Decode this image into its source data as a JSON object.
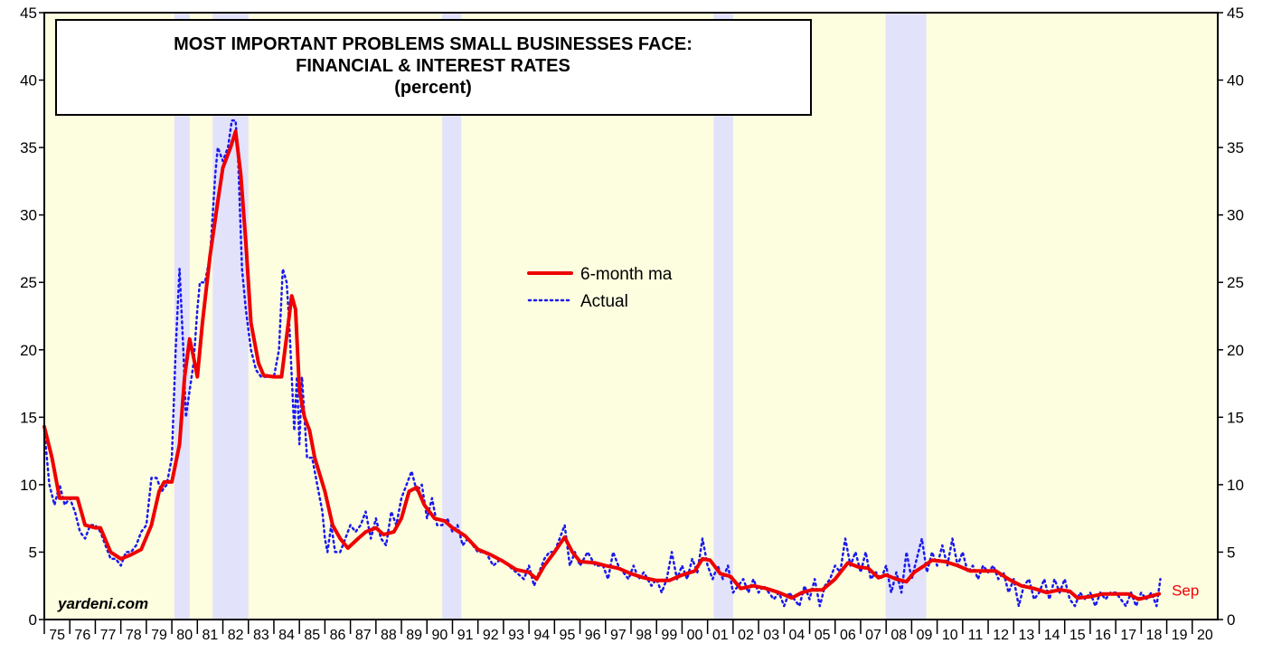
{
  "chart_data": {
    "type": "line",
    "title_lines": [
      "MOST IMPORTANT PROBLEMS SMALL BUSINESSES FACE:",
      "FINANCIAL & INTEREST RATES",
      "(percent)"
    ],
    "source": "yardeni.com",
    "annotation": "Sep",
    "xlim": [
      1975,
      2021
    ],
    "ylim": [
      0,
      45
    ],
    "y2lim": [
      0,
      45
    ],
    "yticks": [
      0,
      5,
      10,
      15,
      20,
      25,
      30,
      35,
      40,
      45
    ],
    "y2ticks": [
      0,
      5,
      10,
      15,
      20,
      25,
      30,
      35,
      40,
      45
    ],
    "xticks": [
      {
        "value": 1975,
        "label": "75"
      },
      {
        "value": 1976,
        "label": "76"
      },
      {
        "value": 1977,
        "label": "77"
      },
      {
        "value": 1978,
        "label": "78"
      },
      {
        "value": 1979,
        "label": "79"
      },
      {
        "value": 1980,
        "label": "80"
      },
      {
        "value": 1981,
        "label": "81"
      },
      {
        "value": 1982,
        "label": "82"
      },
      {
        "value": 1983,
        "label": "83"
      },
      {
        "value": 1984,
        "label": "84"
      },
      {
        "value": 1985,
        "label": "85"
      },
      {
        "value": 1986,
        "label": "86"
      },
      {
        "value": 1987,
        "label": "87"
      },
      {
        "value": 1988,
        "label": "88"
      },
      {
        "value": 1989,
        "label": "89"
      },
      {
        "value": 1990,
        "label": "90"
      },
      {
        "value": 1991,
        "label": "91"
      },
      {
        "value": 1992,
        "label": "92"
      },
      {
        "value": 1993,
        "label": "93"
      },
      {
        "value": 1994,
        "label": "94"
      },
      {
        "value": 1995,
        "label": "95"
      },
      {
        "value": 1996,
        "label": "96"
      },
      {
        "value": 1997,
        "label": "97"
      },
      {
        "value": 1998,
        "label": "98"
      },
      {
        "value": 1999,
        "label": "99"
      },
      {
        "value": 2000,
        "label": "00"
      },
      {
        "value": 2001,
        "label": "01"
      },
      {
        "value": 2002,
        "label": "02"
      },
      {
        "value": 2003,
        "label": "03"
      },
      {
        "value": 2004,
        "label": "04"
      },
      {
        "value": 2005,
        "label": "05"
      },
      {
        "value": 2006,
        "label": "06"
      },
      {
        "value": 2007,
        "label": "07"
      },
      {
        "value": 2008,
        "label": "08"
      },
      {
        "value": 2009,
        "label": "09"
      },
      {
        "value": 2010,
        "label": "10"
      },
      {
        "value": 2011,
        "label": "11"
      },
      {
        "value": 2012,
        "label": "12"
      },
      {
        "value": 2013,
        "label": "13"
      },
      {
        "value": 2014,
        "label": "14"
      },
      {
        "value": 2015,
        "label": "15"
      },
      {
        "value": 2016,
        "label": "16"
      },
      {
        "value": 2017,
        "label": "17"
      },
      {
        "value": 2018,
        "label": "18"
      },
      {
        "value": 2019,
        "label": "19"
      },
      {
        "value": 2020,
        "label": "20"
      }
    ],
    "shaded_periods": [
      [
        1980.1,
        1980.7
      ],
      [
        1981.6,
        1983.0
      ],
      [
        1990.6,
        1991.35
      ],
      [
        2001.24,
        2002.0
      ],
      [
        2007.98,
        2009.57
      ]
    ],
    "background_color": "#fdfde0",
    "shade_color": "#e2e2fa",
    "series": [
      {
        "name": "6-month ma",
        "color": "#ee0000",
        "style": "solid",
        "x": [
          1975.0,
          1975.3,
          1975.6,
          1976.0,
          1976.3,
          1976.6,
          1977.0,
          1977.2,
          1977.6,
          1978.0,
          1978.4,
          1978.8,
          1979.2,
          1979.5,
          1979.7,
          1980.0,
          1980.3,
          1980.5,
          1980.7,
          1980.9,
          1981.0,
          1981.2,
          1981.5,
          1981.8,
          1982.0,
          1982.3,
          1982.5,
          1982.7,
          1982.9,
          1983.1,
          1983.4,
          1983.6,
          1984.0,
          1984.3,
          1984.5,
          1984.7,
          1984.85,
          1985.0,
          1985.2,
          1985.4,
          1985.6,
          1986.0,
          1986.3,
          1986.6,
          1986.9,
          1987.3,
          1987.6,
          1988.0,
          1988.3,
          1988.7,
          1989.0,
          1989.3,
          1989.6,
          1989.9,
          1990.3,
          1990.7,
          1991.0,
          1991.5,
          1992.0,
          1992.5,
          1993.0,
          1993.5,
          1994.0,
          1994.3,
          1994.6,
          1995.0,
          1995.4,
          1995.7,
          1996.0,
          1996.6,
          1997.0,
          1997.5,
          1998.0,
          1998.5,
          1999.0,
          1999.5,
          2000.0,
          2000.5,
          2000.8,
          2001.1,
          2001.5,
          2001.9,
          2002.3,
          2002.8,
          2003.3,
          2003.8,
          2004.3,
          2004.7,
          2005.1,
          2005.5,
          2006.0,
          2006.5,
          2006.9,
          2007.3,
          2007.7,
          2008.0,
          2008.4,
          2008.8,
          2009.1,
          2009.5,
          2009.8,
          2010.3,
          2010.8,
          2011.3,
          2011.8,
          2012.3,
          2012.8,
          2013.3,
          2013.8,
          2014.3,
          2014.8,
          2015.2,
          2015.5,
          2016.0,
          2016.5,
          2017.0,
          2017.5,
          2017.9,
          2018.3,
          2018.7
        ],
        "values": [
          14.3,
          12,
          9,
          9,
          9,
          7,
          6.8,
          6.8,
          5,
          4.5,
          4.8,
          5.2,
          7,
          9.5,
          10.2,
          10.2,
          13,
          18,
          20.8,
          19,
          18,
          22,
          27,
          31,
          33.5,
          35,
          36.2,
          33,
          28,
          22,
          19,
          18.1,
          18,
          18,
          21,
          24,
          23,
          17,
          15,
          14,
          12,
          9.5,
          7,
          6,
          5.3,
          6,
          6.5,
          6.8,
          6.3,
          6.5,
          7.5,
          9.5,
          9.8,
          8.5,
          7.5,
          7.3,
          6.8,
          6.2,
          5.2,
          4.8,
          4.3,
          3.7,
          3.5,
          3,
          4,
          5,
          6.1,
          5,
          4.3,
          4.2,
          4,
          3.8,
          3.4,
          3.1,
          2.9,
          2.9,
          3.3,
          3.6,
          4.5,
          4.4,
          3.4,
          3.2,
          2.3,
          2.5,
          2.3,
          2,
          1.6,
          2,
          2.2,
          2.2,
          3,
          4.2,
          3.9,
          3.8,
          3.1,
          3.3,
          3,
          2.8,
          3.5,
          4,
          4.4,
          4.3,
          4,
          3.6,
          3.6,
          3.6,
          3,
          2.5,
          2.3,
          2,
          2.2,
          2.1,
          1.6,
          1.7,
          1.9,
          1.9,
          1.9,
          1.5,
          1.7,
          1.9
        ]
      },
      {
        "name": "Actual",
        "color": "#1a1aee",
        "style": "dotted",
        "x": [
          1975.0,
          1975.2,
          1975.4,
          1975.6,
          1975.8,
          1976.0,
          1976.2,
          1976.4,
          1976.6,
          1976.8,
          1977.0,
          1977.2,
          1977.4,
          1977.6,
          1977.8,
          1978.0,
          1978.2,
          1978.4,
          1978.6,
          1978.8,
          1979.0,
          1979.2,
          1979.4,
          1979.6,
          1979.8,
          1980.0,
          1980.15,
          1980.3,
          1980.45,
          1980.55,
          1980.7,
          1980.85,
          1981.0,
          1981.1,
          1981.3,
          1981.5,
          1981.7,
          1981.8,
          1982.0,
          1982.2,
          1982.35,
          1982.5,
          1982.6,
          1982.75,
          1982.9,
          1983.1,
          1983.3,
          1983.5,
          1984.0,
          1984.2,
          1984.35,
          1984.5,
          1984.6,
          1984.7,
          1984.8,
          1984.9,
          1985.0,
          1985.1,
          1985.3,
          1985.5,
          1985.7,
          1985.9,
          1986.0,
          1986.1,
          1986.25,
          1986.4,
          1986.6,
          1986.8,
          1987.0,
          1987.2,
          1987.4,
          1987.6,
          1987.8,
          1988.0,
          1988.2,
          1988.4,
          1988.6,
          1988.8,
          1989.0,
          1989.2,
          1989.4,
          1989.6,
          1989.8,
          1990.0,
          1990.2,
          1990.4,
          1990.6,
          1990.8,
          1991.0,
          1991.2,
          1991.4,
          1991.6,
          1991.8,
          1992.0,
          1992.3,
          1992.6,
          1992.9,
          1993.2,
          1993.5,
          1993.8,
          1994.0,
          1994.2,
          1994.4,
          1994.6,
          1994.8,
          1995.0,
          1995.2,
          1995.4,
          1995.6,
          1995.8,
          1996.0,
          1996.3,
          1996.6,
          1996.9,
          1997.1,
          1997.3,
          1997.5,
          1997.7,
          1997.9,
          1998.1,
          1998.3,
          1998.5,
          1998.8,
          1999.0,
          1999.2,
          1999.4,
          1999.6,
          1999.8,
          2000.0,
          2000.2,
          2000.4,
          2000.6,
          2000.8,
          2001.0,
          2001.2,
          2001.4,
          2001.6,
          2001.8,
          2002.0,
          2002.2,
          2002.4,
          2002.6,
          2002.8,
          2003.0,
          2003.2,
          2003.4,
          2003.6,
          2003.8,
          2004.0,
          2004.2,
          2004.4,
          2004.6,
          2004.8,
          2005.0,
          2005.2,
          2005.4,
          2005.6,
          2005.8,
          2006.0,
          2006.2,
          2006.4,
          2006.6,
          2006.8,
          2007.0,
          2007.2,
          2007.4,
          2007.6,
          2007.8,
          2008.0,
          2008.2,
          2008.4,
          2008.6,
          2008.8,
          2009.0,
          2009.2,
          2009.4,
          2009.6,
          2009.8,
          2010.0,
          2010.2,
          2010.4,
          2010.6,
          2010.8,
          2011.0,
          2011.2,
          2011.4,
          2011.6,
          2011.8,
          2012.0,
          2012.2,
          2012.4,
          2012.6,
          2012.8,
          2013.0,
          2013.2,
          2013.4,
          2013.6,
          2013.8,
          2014.0,
          2014.2,
          2014.4,
          2014.6,
          2014.8,
          2015.0,
          2015.2,
          2015.4,
          2015.6,
          2015.8,
          2016.0,
          2016.2,
          2016.4,
          2016.6,
          2016.8,
          2017.0,
          2017.2,
          2017.4,
          2017.6,
          2017.8,
          2018.0,
          2018.2,
          2018.4,
          2018.6,
          2018.75
        ],
        "values": [
          14,
          10,
          8.5,
          10,
          8.5,
          9,
          8,
          6.5,
          6,
          7,
          7,
          6.5,
          5.5,
          4.5,
          4.5,
          4,
          5,
          5,
          5.5,
          6.5,
          7,
          10.5,
          10.5,
          9.5,
          10,
          12,
          20,
          26,
          20,
          15,
          17,
          19,
          23,
          25,
          25,
          27,
          33,
          35,
          34,
          35,
          37,
          37,
          34,
          26,
          23,
          20,
          18.5,
          18,
          18,
          20,
          26,
          25,
          22,
          18,
          14,
          18,
          13,
          18,
          12,
          12,
          10,
          8,
          6,
          5,
          7,
          5,
          5,
          6,
          7,
          6.5,
          7,
          8,
          6,
          7.5,
          6,
          5.5,
          8,
          7,
          9,
          10,
          11,
          9.5,
          10,
          7.5,
          9,
          7,
          7,
          7.5,
          6.5,
          7,
          5.5,
          6,
          5.5,
          5,
          5,
          4,
          4.5,
          4,
          3.5,
          3,
          4,
          2.5,
          3.5,
          4.5,
          5,
          5,
          6,
          7,
          4,
          5,
          4,
          5,
          4,
          4,
          3,
          5,
          4,
          3.5,
          3,
          4,
          3,
          3.5,
          2.5,
          3,
          2,
          3,
          5,
          3,
          4,
          3,
          4.5,
          3.5,
          6,
          4,
          3,
          4,
          3,
          4,
          2,
          2.5,
          3,
          2,
          3,
          2,
          2.5,
          2,
          1.5,
          2,
          1,
          2,
          1.5,
          1,
          2.5,
          1.5,
          3,
          1,
          2.5,
          3,
          4,
          3.5,
          6,
          4,
          5,
          3.5,
          5,
          3,
          3.5,
          3,
          4,
          2,
          3.5,
          2,
          5,
          3,
          4.5,
          6,
          3.5,
          5,
          4,
          5.5,
          4,
          6,
          4,
          5,
          3.5,
          4,
          3,
          4,
          3.5,
          4,
          3,
          3.5,
          2,
          3,
          1,
          2.5,
          3,
          1.5,
          2,
          3,
          1.5,
          3,
          2,
          3,
          1.5,
          1,
          2,
          1.5,
          2,
          1,
          2,
          1.5,
          2,
          2,
          1.5,
          1,
          2,
          1,
          2,
          1.5,
          2,
          1,
          3
        ]
      }
    ]
  }
}
